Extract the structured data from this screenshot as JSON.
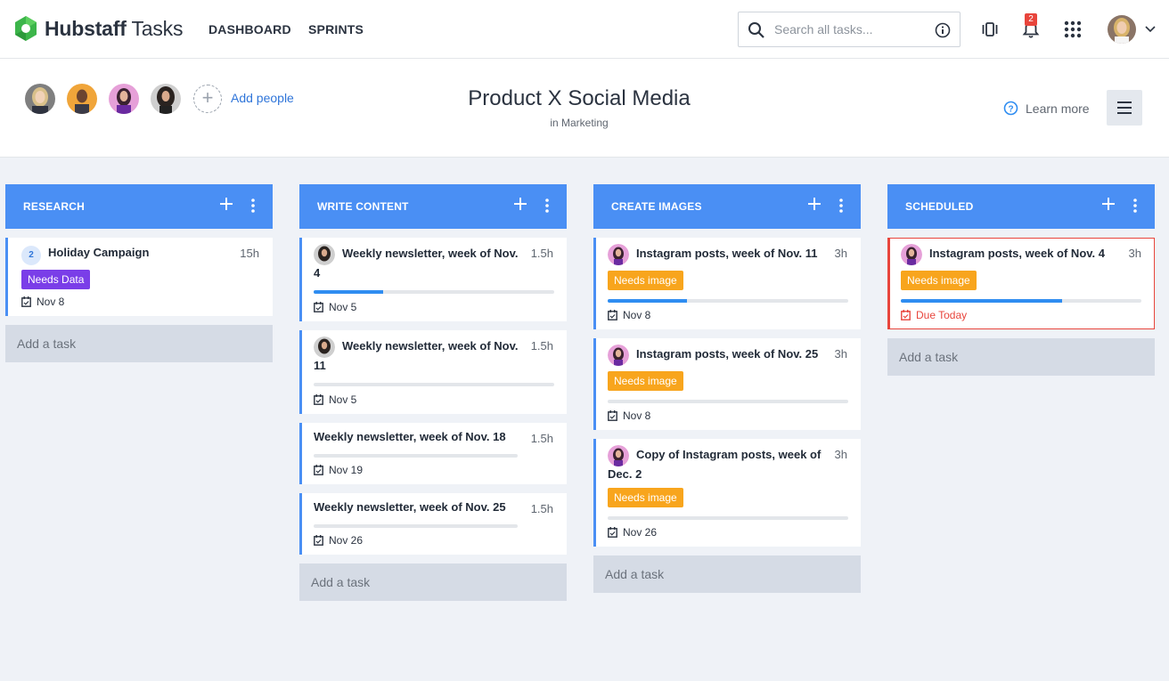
{
  "app": {
    "brand_bold": "Hubstaff",
    "brand_light": "Tasks"
  },
  "nav": {
    "dashboard": "DASHBOARD",
    "sprints": "SPRINTS"
  },
  "search": {
    "placeholder": "Search all tasks..."
  },
  "notifications": {
    "count": "2"
  },
  "project": {
    "title": "Product X Social Media",
    "subtitle": "in Marketing",
    "add_people": "Add people",
    "learn_more": "Learn more"
  },
  "board": {
    "add_task": "Add a task",
    "columns": [
      {
        "title": "RESEARCH",
        "cards": [
          {
            "count": "2",
            "title": "Holiday Campaign",
            "hours": "15h",
            "tag": "Needs Data",
            "date": "Nov 8"
          }
        ]
      },
      {
        "title": "WRITE CONTENT",
        "cards": [
          {
            "title_l1": "Weekly newsletter, week of Nov.",
            "title_l2": "4",
            "hours": "1.5h",
            "progress": 0.29,
            "date": "Nov 5"
          },
          {
            "title_l1": "Weekly newsletter, week of Nov.",
            "title_l2": "11",
            "hours": "1.5h",
            "progress": 0,
            "date": "Nov 5"
          },
          {
            "title": "Weekly newsletter, week of Nov. 18",
            "hours": "1.5h",
            "progress": 0,
            "date": "Nov 19"
          },
          {
            "title": "Weekly newsletter, week of Nov. 25",
            "hours": "1.5h",
            "progress": 0,
            "date": "Nov 26"
          }
        ]
      },
      {
        "title": "CREATE IMAGES",
        "cards": [
          {
            "title": "Instagram posts, week of Nov. 11",
            "hours": "3h",
            "tag": "Needs image",
            "progress": 0.33,
            "date": "Nov 8"
          },
          {
            "title": "Instagram posts, week of Nov. 25",
            "hours": "3h",
            "tag": "Needs image",
            "progress": 0,
            "date": "Nov 8"
          },
          {
            "title_l1": "Copy of Instagram posts, week of",
            "title_l2": "Dec. 2",
            "hours": "3h",
            "tag": "Needs image",
            "progress": 0,
            "date": "Nov 26"
          }
        ]
      },
      {
        "title": "SCHEDULED",
        "cards": [
          {
            "title": "Instagram posts, week of Nov. 4",
            "hours": "3h",
            "tag": "Needs image",
            "progress": 0.67,
            "date": "Due Today"
          }
        ]
      }
    ]
  },
  "colors": {
    "accent": "#4a8ff4",
    "danger": "#e8453c",
    "tag_purple": "#7a3ee8",
    "tag_orange": "#f8a51d"
  }
}
